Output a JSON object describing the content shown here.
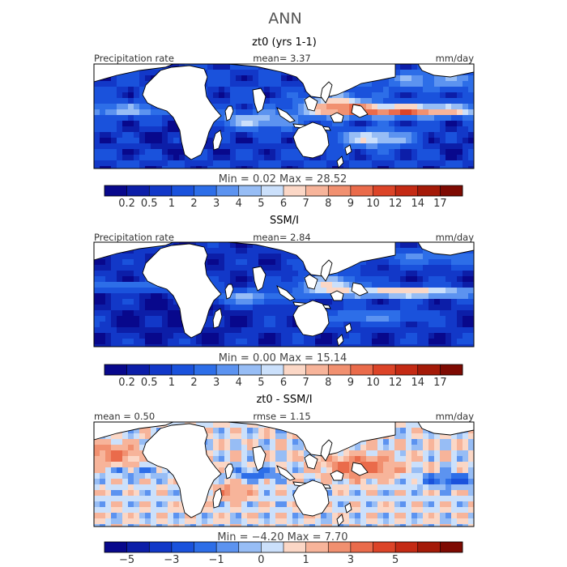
{
  "title": "ANN",
  "chart_data": [
    {
      "type": "heatmap",
      "title": "zt0 (yrs 1-1)",
      "header_left": "Precipitation rate",
      "header_mid": "mean=    3.37",
      "header_right": "mm/day",
      "stats": "Min =    0.02  Max =   28.52",
      "colorbar": {
        "labels": [
          "0.2",
          "0.5",
          "1",
          "2",
          "3",
          "4",
          "5",
          "6",
          "7",
          "8",
          "9",
          "10",
          "12",
          "14",
          "17"
        ],
        "colors": [
          "#08088c",
          "#0c1ea8",
          "#1238c8",
          "#1a52dc",
          "#2d6ee8",
          "#5c93f0",
          "#97bdf5",
          "#cbe0fb",
          "#fbd7c6",
          "#f7b49a",
          "#f19070",
          "#ea6b4b",
          "#dc4428",
          "#c42a14",
          "#a41a08",
          "#7e0a02"
        ]
      },
      "field": "precip_model",
      "grid": false
    },
    {
      "type": "heatmap",
      "title": "SSM/I",
      "header_left": "Precipitation rate",
      "header_mid": "mean=    2.84",
      "header_right": "mm/day",
      "stats": "Min =    0.00  Max =   15.14",
      "colorbar": {
        "labels": [
          "0.2",
          "0.5",
          "1",
          "2",
          "3",
          "4",
          "5",
          "6",
          "7",
          "8",
          "9",
          "10",
          "12",
          "14",
          "17"
        ],
        "colors": [
          "#08088c",
          "#0c1ea8",
          "#1238c8",
          "#1a52dc",
          "#2d6ee8",
          "#5c93f0",
          "#97bdf5",
          "#cbe0fb",
          "#fbd7c6",
          "#f7b49a",
          "#f19070",
          "#ea6b4b",
          "#dc4428",
          "#c42a14",
          "#a41a08",
          "#7e0a02"
        ]
      },
      "field": "precip_obs",
      "grid": false
    },
    {
      "type": "heatmap",
      "title": "zt0 - SSM/I",
      "header_left": "mean =   0.50",
      "header_mid": "rmse =    1.15",
      "header_right": "mm/day",
      "stats": "Min =   −4.20  Max =    7.70",
      "colorbar": {
        "labels": [
          "−5",
          "",
          "−3",
          "",
          "−1",
          "",
          "0",
          "",
          "1",
          "",
          "3",
          "",
          "5",
          "",
          ""
        ],
        "colors": [
          "#08088c",
          "#0c1ea8",
          "#1238c8",
          "#1a52dc",
          "#2d6ee8",
          "#5c93f0",
          "#97bdf5",
          "#cbe0fb",
          "#fbd7c6",
          "#f7b49a",
          "#f19070",
          "#ea6b4b",
          "#dc4428",
          "#c42a14",
          "#a41a08",
          "#7e0a02"
        ]
      },
      "field": "difference",
      "grid": false
    }
  ]
}
